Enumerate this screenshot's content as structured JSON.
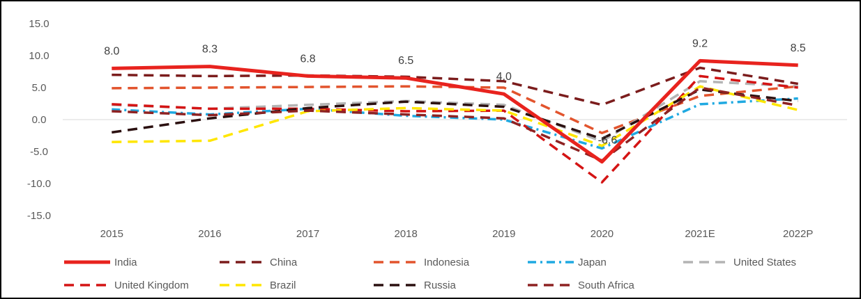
{
  "chart_data": {
    "type": "line",
    "title": "",
    "xlabel": "",
    "ylabel": "",
    "categories": [
      "2015",
      "2016",
      "2017",
      "2018",
      "2019",
      "2020",
      "2021E",
      "2022P"
    ],
    "ylim": [
      -15,
      15
    ],
    "yticks": [
      "15.0",
      "10.0",
      "5.0",
      "0.0",
      "-5.0",
      "-10.0",
      "-15.0"
    ],
    "ytick_values": [
      15,
      10,
      5,
      0,
      -5,
      -10,
      -15
    ],
    "grid": "zero line only",
    "legend_position": "bottom",
    "series": [
      {
        "name": "India",
        "color": "#e8231e",
        "style": "solid",
        "values": [
          8.0,
          8.3,
          6.8,
          6.5,
          4.0,
          -6.6,
          9.2,
          8.5
        ],
        "data_labels": [
          "8.0",
          "8.3",
          "6.8",
          "6.5",
          "4.0",
          "-6.6",
          "9.2",
          "8.5"
        ]
      },
      {
        "name": "China",
        "color": "#7b1c1c",
        "style": "dash",
        "values": [
          7.0,
          6.8,
          6.9,
          6.7,
          6.0,
          2.3,
          8.1,
          5.6
        ]
      },
      {
        "name": "Indonesia",
        "color": "#e2542d",
        "style": "dash",
        "values": [
          4.9,
          5.0,
          5.1,
          5.2,
          5.0,
          -2.1,
          3.7,
          5.2
        ]
      },
      {
        "name": "Japan",
        "color": "#1fa9e1",
        "style": "dashdot",
        "values": [
          1.6,
          0.8,
          1.7,
          0.6,
          0.0,
          -4.5,
          2.4,
          3.3
        ]
      },
      {
        "name": "United States",
        "color": "#b4b4b4",
        "style": "dash",
        "values": [
          2.3,
          1.7,
          2.3,
          2.9,
          2.3,
          -3.4,
          6.0,
          5.2
        ]
      },
      {
        "name": "United Kingdom",
        "color": "#d41414",
        "style": "dash",
        "values": [
          2.4,
          1.7,
          1.7,
          1.3,
          1.4,
          -9.8,
          6.8,
          5.0
        ]
      },
      {
        "name": "Brazil",
        "color": "#ffe600",
        "style": "dash",
        "values": [
          -3.5,
          -3.3,
          1.3,
          1.8,
          1.4,
          -4.1,
          5.2,
          1.5
        ]
      },
      {
        "name": "Russia",
        "color": "#2b1010",
        "style": "dash",
        "values": [
          -2.0,
          0.2,
          1.8,
          2.8,
          2.0,
          -3.0,
          4.7,
          2.9
        ]
      },
      {
        "name": "South Africa",
        "color": "#8e2222",
        "style": "dash",
        "values": [
          1.3,
          0.7,
          1.4,
          0.8,
          0.2,
          -6.4,
          5.0,
          2.2
        ]
      }
    ]
  }
}
